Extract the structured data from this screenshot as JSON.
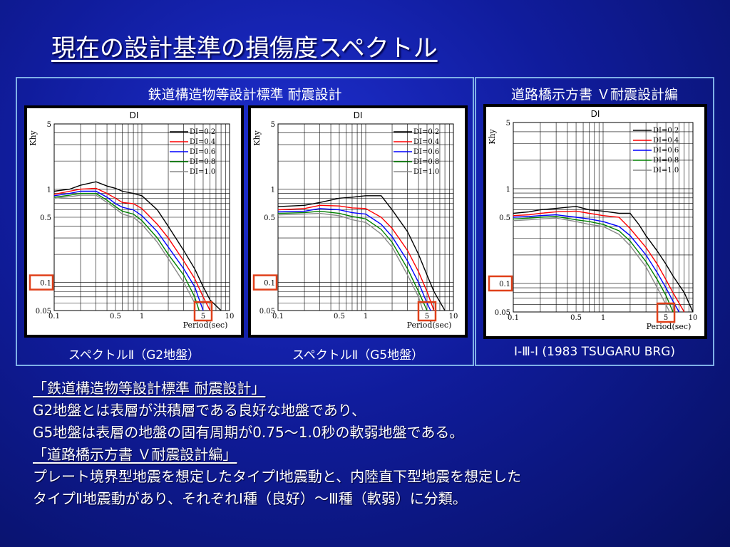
{
  "title": "現在の設計基準の損傷度スペクトル",
  "groups": [
    {
      "header": "鉄道構造物等設計標準 耐震設計"
    },
    {
      "header": "道路橋示方書 Ｖ耐震設計編"
    }
  ],
  "captions": [
    "スペクトルⅡ（G2地盤）",
    "スペクトルⅡ（G5地盤）",
    "Ⅰ-Ⅲ-Ⅰ (1983 TSUGARU BRG)"
  ],
  "colors": {
    "DI=0.2": "#000000",
    "DI=0.4": "#ff0000",
    "DI=0.6": "#0000ff",
    "DI=0.8": "#008000",
    "DI=1.0": "#8a8a8a",
    "highlight": "#e0401a"
  },
  "chart_data": [
    {
      "type": "line",
      "title": "DI",
      "xlabel": "Period(sec)",
      "ylabel": "Khy",
      "x_scale": "log",
      "y_scale": "log",
      "xlim": [
        0.1,
        10
      ],
      "ylim": [
        0.05,
        5
      ],
      "x_ticks": [
        "0.1",
        "0.5",
        "1",
        "5",
        "10"
      ],
      "y_ticks": [
        "5",
        "1",
        "0.5",
        "0.1",
        "0.05"
      ],
      "highlighted_ticks": [
        "0.1",
        "5"
      ],
      "grid": true,
      "legend": "top-right",
      "series": [
        {
          "name": "DI=0.2",
          "x": [
            0.1,
            0.15,
            0.2,
            0.3,
            0.4,
            0.5,
            0.6,
            0.8,
            1.0,
            1.5,
            2.0,
            3.0,
            4.0,
            5.0,
            6.0,
            8.0
          ],
          "y": [
            0.95,
            1.0,
            1.1,
            1.2,
            1.08,
            1.02,
            0.95,
            0.9,
            0.85,
            0.6,
            0.4,
            0.22,
            0.14,
            0.09,
            0.065,
            0.05
          ]
        },
        {
          "name": "DI=0.4",
          "x": [
            0.1,
            0.15,
            0.2,
            0.3,
            0.4,
            0.5,
            0.6,
            0.8,
            1.0,
            1.5,
            2.0,
            3.0,
            4.0,
            5.0,
            6.0
          ],
          "y": [
            0.88,
            0.95,
            1.0,
            1.02,
            0.9,
            0.8,
            0.72,
            0.7,
            0.62,
            0.42,
            0.3,
            0.17,
            0.11,
            0.07,
            0.05
          ]
        },
        {
          "name": "DI=0.6",
          "x": [
            0.1,
            0.15,
            0.2,
            0.3,
            0.4,
            0.5,
            0.6,
            0.8,
            1.0,
            1.5,
            2.0,
            3.0,
            4.0,
            5.0
          ],
          "y": [
            0.85,
            0.9,
            0.95,
            0.95,
            0.82,
            0.7,
            0.64,
            0.6,
            0.52,
            0.35,
            0.24,
            0.14,
            0.09,
            0.05
          ]
        },
        {
          "name": "DI=0.8",
          "x": [
            0.1,
            0.15,
            0.2,
            0.3,
            0.4,
            0.5,
            0.6,
            0.8,
            1.0,
            1.5,
            2.0,
            3.0,
            4.0,
            4.5
          ],
          "y": [
            0.82,
            0.86,
            0.9,
            0.9,
            0.76,
            0.65,
            0.58,
            0.54,
            0.46,
            0.3,
            0.2,
            0.12,
            0.07,
            0.05
          ]
        },
        {
          "name": "DI=1.0",
          "x": [
            0.1,
            0.15,
            0.2,
            0.3,
            0.4,
            0.5,
            0.6,
            0.8,
            1.0,
            1.5,
            2.0,
            3.0,
            4.0
          ],
          "y": [
            0.8,
            0.83,
            0.86,
            0.86,
            0.72,
            0.62,
            0.54,
            0.5,
            0.42,
            0.27,
            0.18,
            0.1,
            0.06
          ]
        }
      ]
    },
    {
      "type": "line",
      "title": "DI",
      "xlabel": "Period(sec)",
      "ylabel": "Khy",
      "x_scale": "log",
      "y_scale": "log",
      "xlim": [
        0.1,
        10
      ],
      "ylim": [
        0.05,
        5
      ],
      "x_ticks": [
        "0.1",
        "0.5",
        "1",
        "5",
        "10"
      ],
      "y_ticks": [
        "5",
        "1",
        "0.5",
        "0.1",
        "0.05"
      ],
      "highlighted_ticks": [
        "0.1",
        "5"
      ],
      "grid": true,
      "legend": "top-right",
      "series": [
        {
          "name": "DI=0.2",
          "x": [
            0.1,
            0.2,
            0.3,
            0.5,
            0.7,
            1.0,
            1.5,
            2.0,
            3.0,
            4.0,
            5.0,
            6.0,
            8.0
          ],
          "y": [
            0.65,
            0.67,
            0.72,
            0.8,
            0.82,
            0.85,
            0.85,
            0.6,
            0.35,
            0.2,
            0.12,
            0.08,
            0.05
          ]
        },
        {
          "name": "DI=0.4",
          "x": [
            0.1,
            0.2,
            0.3,
            0.5,
            0.7,
            1.0,
            1.5,
            2.0,
            3.0,
            4.0,
            5.0,
            6.0
          ],
          "y": [
            0.6,
            0.62,
            0.67,
            0.66,
            0.63,
            0.62,
            0.5,
            0.38,
            0.22,
            0.13,
            0.08,
            0.05
          ]
        },
        {
          "name": "DI=0.6",
          "x": [
            0.1,
            0.2,
            0.3,
            0.5,
            0.7,
            1.0,
            1.5,
            2.0,
            3.0,
            4.0,
            5.0,
            5.5
          ],
          "y": [
            0.57,
            0.58,
            0.62,
            0.6,
            0.56,
            0.54,
            0.42,
            0.31,
            0.17,
            0.1,
            0.06,
            0.05
          ]
        },
        {
          "name": "DI=0.8",
          "x": [
            0.1,
            0.2,
            0.3,
            0.5,
            0.7,
            1.0,
            1.5,
            2.0,
            3.0,
            4.0,
            5.0
          ],
          "y": [
            0.55,
            0.56,
            0.58,
            0.55,
            0.51,
            0.48,
            0.37,
            0.27,
            0.14,
            0.08,
            0.05
          ]
        },
        {
          "name": "DI=1.0",
          "x": [
            0.1,
            0.2,
            0.3,
            0.5,
            0.7,
            1.0,
            1.5,
            2.0,
            3.0,
            4.0,
            4.5
          ],
          "y": [
            0.53,
            0.54,
            0.55,
            0.52,
            0.47,
            0.44,
            0.33,
            0.24,
            0.12,
            0.07,
            0.05
          ]
        }
      ]
    },
    {
      "type": "line",
      "title": "DI",
      "xlabel": "Period(sec)",
      "ylabel": "Khy",
      "x_scale": "log",
      "y_scale": "log",
      "xlim": [
        0.1,
        10
      ],
      "ylim": [
        0.05,
        5
      ],
      "x_ticks": [
        "0.1",
        "0.5",
        "1",
        "5",
        "10"
      ],
      "y_ticks": [
        "5",
        "1",
        "0.5",
        "0.1",
        "0.05"
      ],
      "highlighted_ticks": [
        "0.1",
        "5"
      ],
      "grid": true,
      "legend": "top-right",
      "series": [
        {
          "name": "DI=0.2",
          "x": [
            0.1,
            0.15,
            0.2,
            0.3,
            0.5,
            0.7,
            1.0,
            1.5,
            2.0,
            2.5,
            3.0,
            4.0,
            5.0,
            6.0,
            8.0,
            10.0
          ],
          "y": [
            0.55,
            0.57,
            0.6,
            0.62,
            0.65,
            0.6,
            0.58,
            0.55,
            0.55,
            0.42,
            0.32,
            0.22,
            0.16,
            0.12,
            0.08,
            0.05
          ]
        },
        {
          "name": "DI=0.4",
          "x": [
            0.1,
            0.15,
            0.2,
            0.3,
            0.5,
            0.7,
            1.0,
            1.5,
            2.0,
            3.0,
            4.0,
            5.0,
            6.0,
            8.0
          ],
          "y": [
            0.52,
            0.53,
            0.55,
            0.57,
            0.58,
            0.55,
            0.52,
            0.5,
            0.38,
            0.24,
            0.16,
            0.11,
            0.08,
            0.05
          ]
        },
        {
          "name": "DI=0.6",
          "x": [
            0.1,
            0.15,
            0.2,
            0.3,
            0.5,
            0.7,
            1.0,
            1.5,
            2.0,
            3.0,
            4.0,
            5.0,
            6.0,
            7.0
          ],
          "y": [
            0.5,
            0.51,
            0.52,
            0.53,
            0.5,
            0.48,
            0.45,
            0.4,
            0.32,
            0.2,
            0.13,
            0.09,
            0.065,
            0.05
          ]
        },
        {
          "name": "DI=0.8",
          "x": [
            0.1,
            0.15,
            0.2,
            0.3,
            0.5,
            0.7,
            1.0,
            1.5,
            2.0,
            3.0,
            4.0,
            5.0,
            6.0
          ],
          "y": [
            0.48,
            0.49,
            0.5,
            0.51,
            0.47,
            0.45,
            0.42,
            0.36,
            0.28,
            0.17,
            0.11,
            0.075,
            0.05
          ]
        },
        {
          "name": "DI=1.0",
          "x": [
            0.1,
            0.15,
            0.2,
            0.3,
            0.5,
            0.7,
            1.0,
            1.5,
            2.0,
            3.0,
            4.0,
            5.0,
            5.5
          ],
          "y": [
            0.46,
            0.47,
            0.48,
            0.49,
            0.45,
            0.42,
            0.4,
            0.33,
            0.25,
            0.15,
            0.09,
            0.06,
            0.05
          ]
        }
      ]
    }
  ],
  "notes": {
    "heading1": "「鉄道構造物等設計標準 耐震設計」",
    "line1": "G2地盤とは表層が洪積層である良好な地盤であり、",
    "line2": "G5地盤は表層の地盤の固有周期が0.75～1.0秒の軟弱地盤である。",
    "heading2": "「道路橋示方書 Ｖ耐震設計編」",
    "line3": "プレート境界型地震を想定したタイプⅠ地震動と、内陸直下型地震を想定した",
    "line4": "タイプⅡ地震動があり、それぞれⅠ種（良好）～Ⅲ種（軟弱）に分類。"
  }
}
